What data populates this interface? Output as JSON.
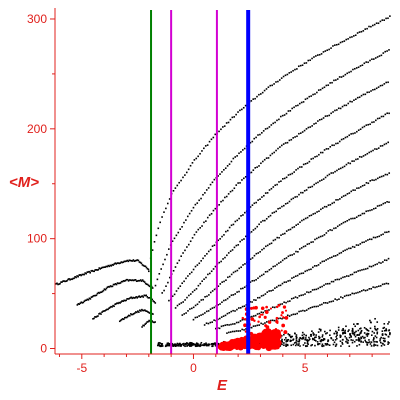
{
  "chart_data": {
    "type": "scatter",
    "title": "",
    "xlabel": "E",
    "ylabel": "<M>",
    "xlim": [
      -6.2,
      8.8
    ],
    "ylim": [
      -5,
      310
    ],
    "x_ticks": [
      -5,
      0,
      5
    ],
    "y_ticks": [
      0,
      100,
      200,
      300
    ],
    "grid": false,
    "legend": "none",
    "colors": {
      "axis": "#e0201c",
      "points": "#000000",
      "highlight_points": "#ff0000",
      "line_green": "#008000",
      "line_magenta": "#d200d2",
      "line_blue": "#0000ff"
    },
    "vertical_lines": [
      {
        "x": -1.9,
        "color": "#008000"
      },
      {
        "x": -1.0,
        "color": "#d200d2"
      },
      {
        "x": 1.05,
        "color": "#d200d2"
      },
      {
        "x": 2.45,
        "color": "#0000ff"
      }
    ],
    "dotted_branches": [
      {
        "x": [
          -6.2,
          -5,
          -4,
          -3,
          -2.5,
          -2
        ],
        "y": [
          58,
          67,
          74,
          80,
          80,
          72
        ]
      },
      {
        "x": [
          -5.2,
          -4.5,
          -3.8,
          -3,
          -2.3,
          -1.8
        ],
        "y": [
          40,
          47,
          56,
          62,
          62,
          55
        ]
      },
      {
        "x": [
          -4.5,
          -4,
          -3.4,
          -2.8,
          -2.1,
          -1.7
        ],
        "y": [
          27,
          34,
          41,
          46,
          48,
          42
        ]
      },
      {
        "x": [
          -3.3,
          -2.8,
          -2.3,
          -1.8
        ],
        "y": [
          25,
          31,
          35,
          32
        ]
      },
      {
        "x": [
          -2.3,
          -2.0,
          -1.7
        ],
        "y": [
          20,
          25,
          24
        ]
      }
    ],
    "dotted_rising": [
      {
        "x": [
          -2.0,
          -1.9,
          -1.5,
          -1.0,
          0,
          1,
          2,
          3,
          4,
          5,
          6,
          7,
          8,
          8.8
        ],
        "y": [
          70,
          85,
          115,
          140,
          170,
          195,
          215,
          232,
          247,
          260,
          272,
          283,
          294,
          302
        ]
      },
      {
        "x": [
          -1.7,
          -1.5,
          -1,
          0,
          1,
          2,
          3,
          4,
          5,
          6,
          7,
          8,
          8.8
        ],
        "y": [
          58,
          70,
          95,
          128,
          155,
          177,
          196,
          212,
          226,
          240,
          252,
          263,
          272
        ]
      },
      {
        "x": [
          -1.4,
          -1.2,
          -0.8,
          0,
          1,
          2,
          3,
          4,
          5,
          6,
          7,
          8,
          8.8
        ],
        "y": [
          50,
          58,
          75,
          102,
          128,
          150,
          168,
          185,
          199,
          212,
          224,
          235,
          244
        ]
      },
      {
        "x": [
          -1.1,
          -0.9,
          -0.5,
          0,
          1,
          2,
          3,
          4,
          5,
          6,
          7,
          8,
          8.8
        ],
        "y": [
          43,
          48,
          60,
          72,
          96,
          118,
          137,
          154,
          168,
          182,
          194,
          206,
          215
        ]
      },
      {
        "x": [
          -0.8,
          -0.5,
          0,
          1,
          2,
          3,
          4,
          5,
          6,
          7,
          8,
          8.8
        ],
        "y": [
          37,
          42,
          52,
          75,
          95,
          114,
          130,
          144,
          157,
          169,
          180,
          188
        ]
      },
      {
        "x": [
          -0.5,
          0,
          0.5,
          1,
          2,
          3,
          4,
          5,
          6,
          7,
          8,
          8.8
        ],
        "y": [
          30,
          38,
          46,
          55,
          72,
          89,
          104,
          118,
          130,
          142,
          153,
          160
        ]
      },
      {
        "x": [
          0,
          0.5,
          1,
          2,
          3,
          4,
          5,
          6,
          7,
          8,
          8.8
        ],
        "y": [
          27,
          32,
          38,
          52,
          66,
          80,
          93,
          106,
          117,
          127,
          134
        ]
      },
      {
        "x": [
          0.5,
          1,
          2,
          3,
          4,
          5,
          6,
          7,
          8,
          8.8
        ],
        "y": [
          22,
          26,
          36,
          47,
          59,
          70,
          81,
          91,
          100,
          107
        ]
      },
      {
        "x": [
          1,
          2,
          3,
          4,
          5,
          6,
          7,
          8,
          8.8
        ],
        "y": [
          18,
          24,
          32,
          41,
          50,
          59,
          67,
          75,
          82
        ]
      },
      {
        "x": [
          1.5,
          2,
          3,
          4,
          5,
          6,
          7,
          8,
          8.8
        ],
        "y": [
          14,
          16,
          22,
          28,
          35,
          42,
          49,
          55,
          60
        ]
      }
    ]
  }
}
